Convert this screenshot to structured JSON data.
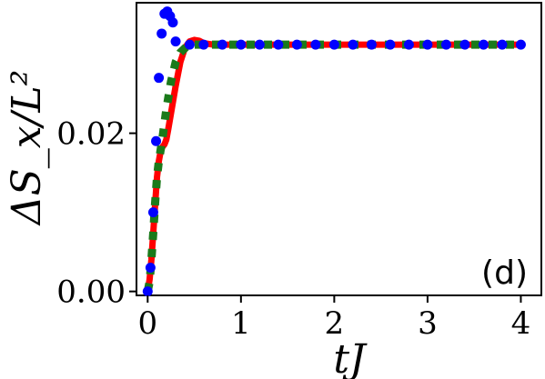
{
  "chart_data": {
    "type": "line",
    "title": "",
    "xlabel": "tJ",
    "ylabel": "ΔS_x/L²",
    "xlim": [
      -0.12,
      4.22
    ],
    "ylim": [
      -0.0005,
      0.0365
    ],
    "xticks": [
      0,
      1,
      2,
      3,
      4
    ],
    "xtick_labels": [
      "0",
      "1",
      "2",
      "3",
      "4"
    ],
    "yticks": [
      0.0,
      0.02
    ],
    "ytick_labels": [
      "0.00",
      "0.02"
    ],
    "grid": false,
    "annotation": "(d)",
    "series": [
      {
        "style": "solid-line",
        "color": "#ff0000",
        "x": [
          0.0,
          0.02,
          0.04,
          0.06,
          0.08,
          0.1,
          0.12,
          0.14,
          0.16,
          0.18,
          0.2,
          0.22,
          0.25,
          0.3,
          0.35,
          0.4,
          0.45,
          0.5,
          0.55,
          0.6,
          0.7,
          0.8,
          1.0,
          1.5,
          2.0,
          2.5,
          3.0,
          3.5,
          4.0
        ],
        "y": [
          0.0,
          0.0015,
          0.004,
          0.0075,
          0.011,
          0.0145,
          0.0165,
          0.0178,
          0.0183,
          0.0186,
          0.0192,
          0.0205,
          0.0225,
          0.026,
          0.029,
          0.0308,
          0.0316,
          0.0318,
          0.0317,
          0.0314,
          0.0312,
          0.0312,
          0.0312,
          0.0312,
          0.0312,
          0.0312,
          0.0312,
          0.0312,
          0.0312
        ]
      },
      {
        "style": "dashed-square",
        "color": "#1a7a1a",
        "x": [
          0.0,
          0.02,
          0.04,
          0.06,
          0.08,
          0.1,
          0.12,
          0.14,
          0.16,
          0.2,
          0.25,
          0.3,
          0.35,
          0.42,
          0.5,
          0.6,
          0.8,
          1.0,
          1.5,
          2.0,
          2.5,
          3.0,
          3.5,
          4.0
        ],
        "y": [
          0.0,
          0.0012,
          0.004,
          0.0075,
          0.0112,
          0.0145,
          0.0165,
          0.018,
          0.0195,
          0.023,
          0.0265,
          0.029,
          0.0302,
          0.031,
          0.0312,
          0.0312,
          0.0312,
          0.0312,
          0.0312,
          0.0312,
          0.0312,
          0.0312,
          0.0312,
          0.0312
        ]
      },
      {
        "style": "dots",
        "color": "#0000ff",
        "x": [
          0.0,
          0.03,
          0.06,
          0.09,
          0.12,
          0.15,
          0.18,
          0.21,
          0.24,
          0.27,
          0.3,
          0.45,
          0.6,
          0.8,
          1.0,
          1.2,
          1.4,
          1.6,
          1.8,
          2.0,
          2.2,
          2.4,
          2.6,
          2.8,
          3.0,
          3.2,
          3.4,
          3.6,
          3.8,
          4.0
        ],
        "y": [
          0.0,
          0.003,
          0.01,
          0.019,
          0.027,
          0.0326,
          0.0351,
          0.0354,
          0.0348,
          0.034,
          0.0316,
          0.0312,
          0.0312,
          0.0312,
          0.0312,
          0.0312,
          0.0312,
          0.0312,
          0.0312,
          0.0312,
          0.0312,
          0.0312,
          0.0312,
          0.0312,
          0.0312,
          0.0312,
          0.0312,
          0.0312,
          0.0312,
          0.0312
        ]
      }
    ]
  }
}
